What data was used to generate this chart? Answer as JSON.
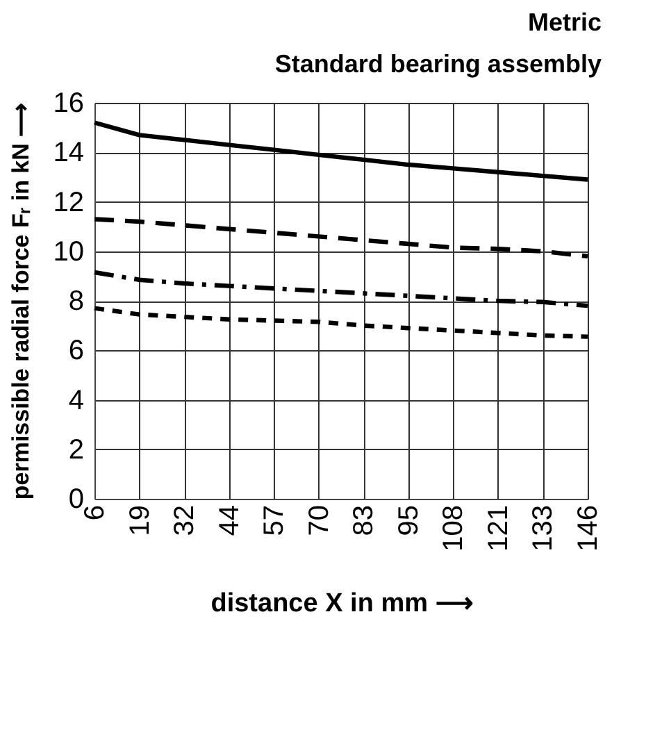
{
  "chart_data": {
    "type": "line",
    "title": [
      "Metric",
      "Standard bearing assembly"
    ],
    "xlabel": "distance X in mm ⟶",
    "ylabel": "permissible radial force Fᵣ in kN ⟶",
    "categories": [
      "6",
      "19",
      "32",
      "44",
      "57",
      "70",
      "83",
      "95",
      "108",
      "121",
      "133",
      "146"
    ],
    "series": [
      {
        "color": "#000000",
        "line_style": "solid",
        "values": [
          15.2,
          14.7,
          14.5,
          14.3,
          14.1,
          13.9,
          13.7,
          13.5,
          13.35,
          13.2,
          13.05,
          12.9
        ]
      },
      {
        "color": "#000000",
        "line_style": "dashed",
        "values": [
          11.3,
          11.2,
          11.05,
          10.9,
          10.75,
          10.6,
          10.45,
          10.3,
          10.15,
          10.1,
          10.0,
          9.8
        ]
      },
      {
        "color": "#000000",
        "line_style": "dashdot",
        "values": [
          9.15,
          8.85,
          8.7,
          8.6,
          8.5,
          8.4,
          8.3,
          8.2,
          8.1,
          8.0,
          7.95,
          7.8
        ]
      },
      {
        "color": "#000000",
        "line_style": "dotted",
        "values": [
          7.7,
          7.45,
          7.35,
          7.25,
          7.2,
          7.15,
          7.0,
          6.9,
          6.8,
          6.7,
          6.6,
          6.55
        ]
      }
    ],
    "ylim": [
      0,
      16
    ],
    "yticks": [
      0,
      2,
      4,
      6,
      8,
      10,
      12,
      14,
      16
    ],
    "grid": true
  }
}
